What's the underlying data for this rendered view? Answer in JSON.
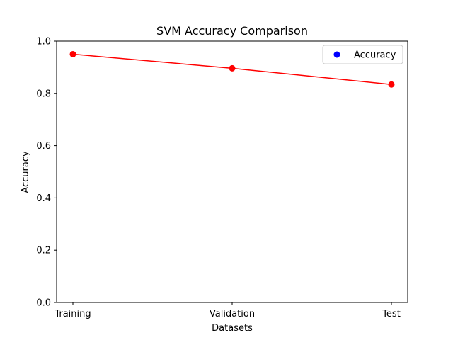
{
  "chart_data": {
    "type": "line",
    "title": "SVM Accuracy Comparison",
    "xlabel": "Datasets",
    "ylabel": "Accuracy",
    "categories": [
      "Training",
      "Validation",
      "Test"
    ],
    "series": [
      {
        "name": "Accuracy",
        "values": [
          0.95,
          0.896,
          0.834
        ],
        "line_color": "#ff0000",
        "marker_color": "#ff0000",
        "legend_marker_color": "#0000ff"
      }
    ],
    "ylim": [
      0,
      1.0
    ],
    "yticks": [
      "0.0",
      "0.2",
      "0.4",
      "0.6",
      "0.8",
      "1.0"
    ],
    "grid": false,
    "legend": "top-right"
  }
}
